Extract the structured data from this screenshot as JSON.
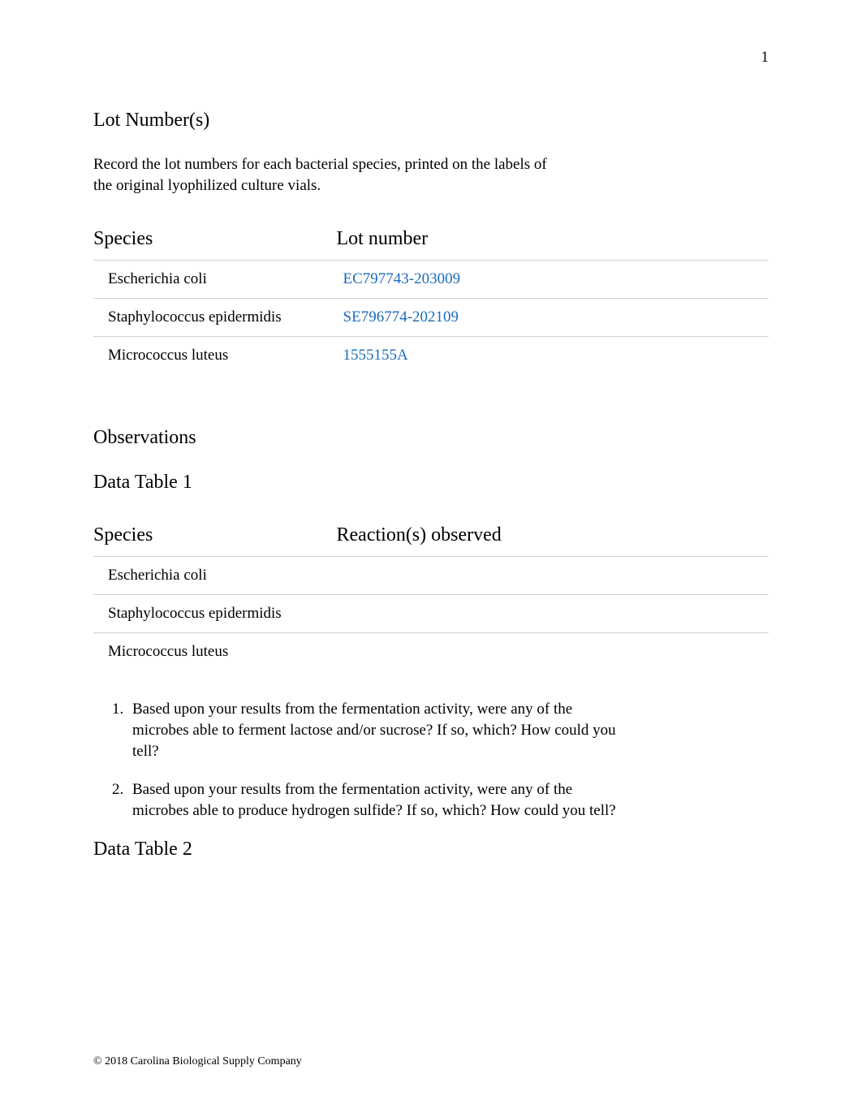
{
  "page_number": "1",
  "section1": {
    "title": "Lot Number(s)",
    "intro": "Record the lot numbers for each bacterial species, printed on the labels of the original lyophilized culture vials.",
    "table": {
      "col1_header": "Species",
      "col2_header": "Lot number",
      "rows": [
        {
          "species": "Escherichia coli",
          "lot": "EC797743-203009"
        },
        {
          "species": "Staphylococcus epidermidis",
          "lot": "SE796774-202109"
        },
        {
          "species": "Micrococcus luteus",
          "lot": "1555155A"
        }
      ]
    }
  },
  "section2": {
    "title": "Observations",
    "subtitle": "Data Table 1",
    "table": {
      "col1_header": "Species",
      "col2_header": "Reaction(s) observed",
      "rows": [
        {
          "species": "Escherichia coli",
          "reaction": ""
        },
        {
          "species": "Staphylococcus epidermidis",
          "reaction": ""
        },
        {
          "species": "Micrococcus luteus",
          "reaction": ""
        }
      ]
    }
  },
  "questions": [
    "Based upon your results from the fermentation activity, were any of the microbes able to ferment lactose and/or sucrose? If so, which? How could you tell?",
    "Based upon your results from the fermentation activity, were any of the microbes able to produce hydrogen sulfide? If so, which? How could you tell?"
  ],
  "data_table_2_title": "Data Table 2",
  "footer": "© 2018 Carolina Biological Supply Company",
  "colors": {
    "link_blue": "#1a6bb8",
    "border_gray": "#d0d0d0",
    "text_black": "#000000",
    "background": "#ffffff"
  },
  "typography": {
    "body_font": "Times New Roman",
    "heading_size_pt": 18,
    "body_size_pt": 14,
    "footer_size_pt": 10
  }
}
